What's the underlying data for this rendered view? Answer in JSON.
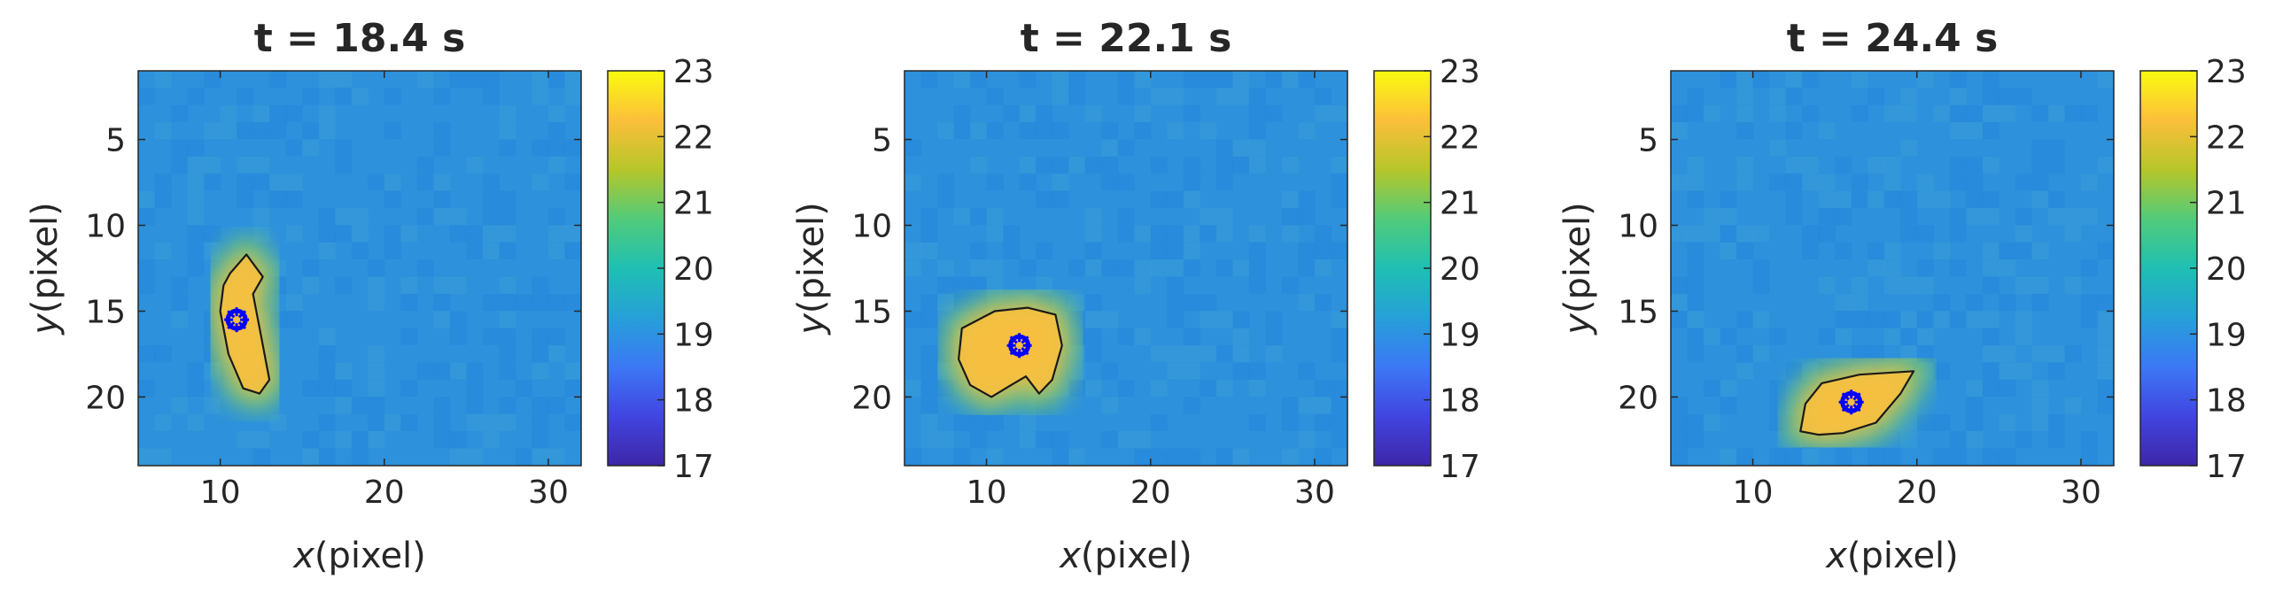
{
  "colormap": [
    "#3e26a8",
    "#4145e0",
    "#3c78f5",
    "#26a0d8",
    "#1fbfb3",
    "#52cb7a",
    "#b6c62a",
    "#fcbf3b",
    "#f9fb0e"
  ],
  "heat_base_color": "#2d91dc",
  "colorbar": {
    "min": 17,
    "max": 23,
    "ticks": [
      "23",
      "22",
      "21",
      "20",
      "19",
      "18",
      "17"
    ]
  },
  "centroid_marker_color": "#0000ff",
  "chart_data": [
    {
      "type": "heatmap",
      "title": "t = 18.4 s",
      "xlabel_var": "x",
      "xlabel_unit": "(pixel)",
      "ylabel_var": "y",
      "ylabel_unit": "(pixel)",
      "xlim": [
        5,
        32
      ],
      "ylim": [
        24,
        1
      ],
      "y_reversed": true,
      "xticks": [
        "10",
        "20",
        "30"
      ],
      "yticks": [
        "5",
        "10",
        "15",
        "20"
      ],
      "hotspot_centroid": [
        11,
        15.5
      ],
      "contour": [
        [
          11.6,
          11.7
        ],
        [
          12.6,
          13.0
        ],
        [
          12.0,
          14.0
        ],
        [
          12.5,
          16.5
        ],
        [
          13.0,
          19.0
        ],
        [
          12.4,
          19.8
        ],
        [
          11.4,
          19.5
        ],
        [
          10.5,
          17.5
        ],
        [
          10.0,
          15.0
        ],
        [
          10.2,
          13.5
        ],
        [
          10.6,
          12.8
        ]
      ]
    },
    {
      "type": "heatmap",
      "title": "t = 22.1 s",
      "xlabel_var": "x",
      "xlabel_unit": "(pixel)",
      "ylabel_var": "y",
      "ylabel_unit": "(pixel)",
      "xlim": [
        5,
        32
      ],
      "ylim": [
        24,
        1
      ],
      "y_reversed": true,
      "xticks": [
        "10",
        "20",
        "30"
      ],
      "yticks": [
        "5",
        "10",
        "15",
        "20"
      ],
      "hotspot_centroid": [
        12,
        17
      ],
      "contour": [
        [
          8.5,
          16.0
        ],
        [
          10.5,
          15.0
        ],
        [
          12.5,
          14.8
        ],
        [
          14.2,
          15.2
        ],
        [
          14.6,
          17.0
        ],
        [
          14.0,
          19.0
        ],
        [
          13.2,
          19.8
        ],
        [
          12.4,
          18.8
        ],
        [
          11.5,
          19.3
        ],
        [
          10.3,
          20.0
        ],
        [
          9.0,
          19.3
        ],
        [
          8.3,
          17.8
        ]
      ]
    },
    {
      "type": "heatmap",
      "title": "t = 24.4 s",
      "xlabel_var": "x",
      "xlabel_unit": "(pixel)",
      "ylabel_var": "y",
      "ylabel_unit": "(pixel)",
      "xlim": [
        5,
        32
      ],
      "ylim": [
        24,
        1
      ],
      "y_reversed": true,
      "xticks": [
        "10",
        "20",
        "30"
      ],
      "yticks": [
        "5",
        "10",
        "15",
        "20"
      ],
      "hotspot_centroid": [
        16,
        20.3
      ],
      "contour": [
        [
          13.2,
          20.4
        ],
        [
          14.2,
          19.2
        ],
        [
          16.5,
          18.7
        ],
        [
          19.8,
          18.5
        ],
        [
          19.0,
          19.8
        ],
        [
          17.5,
          21.5
        ],
        [
          15.5,
          22.1
        ],
        [
          14.0,
          22.2
        ],
        [
          12.9,
          22.0
        ]
      ]
    }
  ]
}
